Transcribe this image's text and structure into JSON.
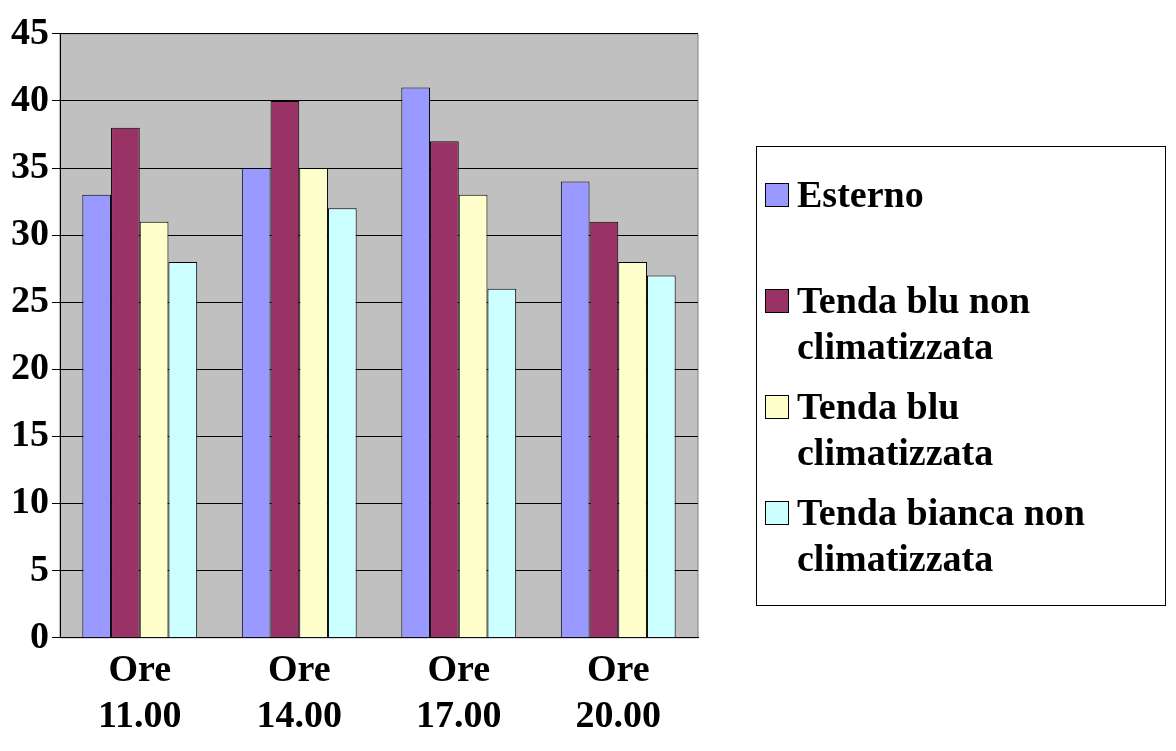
{
  "chart_data": {
    "type": "bar",
    "categories": [
      "Ore 11.00",
      "Ore 14.00",
      "Ore 17.00",
      "Ore 20.00"
    ],
    "series": [
      {
        "name": "Esterno",
        "color": "#9999ff",
        "values": [
          33,
          35,
          41,
          34
        ]
      },
      {
        "name": "Tenda blu non climatizzata",
        "color": "#993366",
        "values": [
          38,
          40,
          37,
          31
        ]
      },
      {
        "name": "Tenda blu climatizzata",
        "color": "#ffffcc",
        "values": [
          31,
          35,
          33,
          28
        ]
      },
      {
        "name": "Tenda bianca non climatizzata",
        "color": "#ccffff",
        "values": [
          28,
          32,
          26,
          27
        ]
      }
    ],
    "ylim": [
      0,
      45
    ],
    "yticks": [
      0,
      5,
      10,
      15,
      20,
      25,
      30,
      35,
      40,
      45
    ],
    "grid": "y",
    "legend": "right"
  }
}
